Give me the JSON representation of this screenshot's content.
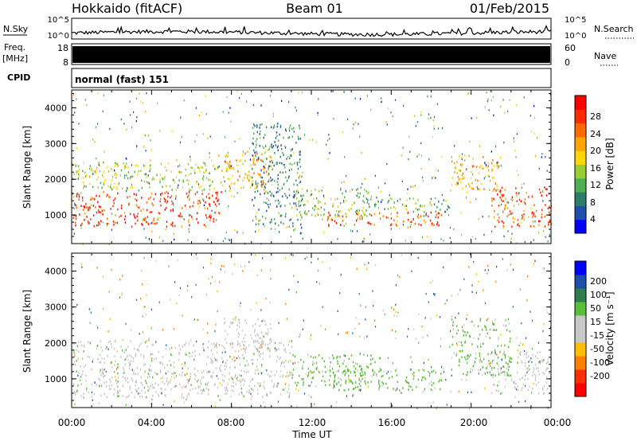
{
  "header": {
    "title": "Hokkaido (fitACF)",
    "beam": "Beam 01",
    "date": "01/Feb/2015"
  },
  "panel_labels": {
    "nsky": "N.Sky",
    "nsky_ticks": [
      "10^5",
      "10^0"
    ],
    "nsearch": "N.Search",
    "nsearch_ticks": [
      "10^5",
      "10^0"
    ],
    "freq_line1": "Freq.",
    "freq_line2": "[MHz]",
    "freq_ticks": [
      "18",
      "8"
    ],
    "nave": "Nave",
    "nave_ticks": [
      "60",
      "0"
    ],
    "cpid": "CPID",
    "cpid_text": "normal (fast) 151"
  },
  "axes": {
    "ylabel": "Slant Range [km]",
    "xlabel": "Time UT",
    "yticks": [
      "1000",
      "2000",
      "3000",
      "4000"
    ],
    "xticks": [
      "00:00",
      "04:00",
      "08:00",
      "12:00",
      "16:00",
      "20:00",
      "00:00"
    ]
  },
  "colorbars": {
    "power": {
      "label": "Power [dB]",
      "ticks": [
        "4",
        "8",
        "12",
        "16",
        "20",
        "24",
        "28"
      ],
      "colors": [
        "#0000ff",
        "#1f4faa",
        "#2e7d6a",
        "#4caf50",
        "#9acd32",
        "#ffd700",
        "#ffa500",
        "#ff6a00",
        "#ff2a00",
        "#ff0000"
      ]
    },
    "velocity": {
      "label": "Velocity [m s⁻¹]",
      "ticks": [
        "200",
        "100",
        "50",
        "15",
        "-15",
        "-50",
        "-100",
        "-200"
      ],
      "colors": [
        "#0000ff",
        "#1f4faa",
        "#2e7d4f",
        "#5bbf3a",
        "#c8c8c8",
        "#c8c8c8",
        "#ffbf00",
        "#ff8000",
        "#ff3000",
        "#ff0000"
      ]
    }
  },
  "chart_data": [
    {
      "type": "line",
      "title": "N.Sky / N.Search",
      "x_range_hours": [
        0,
        24
      ],
      "ylim_log10": [
        0,
        5
      ],
      "description_series": "noise level, roughly flat near 10^1"
    },
    {
      "type": "bar",
      "title": "Freq. / Nave",
      "freq_mhz": 10.5,
      "nave_constant": true
    },
    {
      "type": "heatmap",
      "title": "Power",
      "x_range_hours": [
        0,
        24
      ],
      "ylim_km": [
        200,
        4500
      ],
      "zlim_db": [
        0,
        31
      ],
      "regions": [
        {
          "t0": 0.0,
          "t1": 7.5,
          "r0": 700,
          "r1": 1700,
          "power": 26
        },
        {
          "t0": 0.0,
          "t1": 8.0,
          "r0": 1700,
          "r1": 2500,
          "power": 14
        },
        {
          "t0": 7.5,
          "t1": 10.0,
          "r0": 1800,
          "r1": 2800,
          "power": 20
        },
        {
          "t0": 9.0,
          "t1": 11.5,
          "r0": 500,
          "r1": 3600,
          "power": 8
        },
        {
          "t0": 11.0,
          "t1": 15.0,
          "r0": 1000,
          "r1": 1800,
          "power": 13
        },
        {
          "t0": 12.5,
          "t1": 18.5,
          "r0": 700,
          "r1": 1100,
          "power": 25
        },
        {
          "t0": 15.0,
          "t1": 19.0,
          "r0": 1100,
          "r1": 1500,
          "power": 12
        },
        {
          "t0": 19.0,
          "t1": 21.5,
          "r0": 1700,
          "r1": 2700,
          "power": 20
        },
        {
          "t0": 21.0,
          "t1": 24.0,
          "r0": 700,
          "r1": 1800,
          "power": 25
        }
      ]
    },
    {
      "type": "heatmap",
      "title": "Velocity",
      "x_range_hours": [
        0,
        24
      ],
      "ylim_km": [
        200,
        4500
      ],
      "zlim_ms": [
        -250,
        250
      ],
      "regions": [
        {
          "t0": 0.0,
          "t1": 11.0,
          "r0": 500,
          "r1": 2100,
          "velocity": 0
        },
        {
          "t0": 7.5,
          "t1": 10.0,
          "r0": 1800,
          "r1": 2700,
          "velocity": -20
        },
        {
          "t0": 11.0,
          "t1": 15.5,
          "r0": 800,
          "r1": 1700,
          "velocity": 30
        },
        {
          "t0": 13.0,
          "t1": 18.5,
          "r0": 700,
          "r1": 1300,
          "velocity": 30
        },
        {
          "t0": 19.0,
          "t1": 22.0,
          "r0": 1100,
          "r1": 2700,
          "velocity": 25
        },
        {
          "t0": 21.0,
          "t1": 24.0,
          "r0": 600,
          "r1": 1800,
          "velocity": 0
        }
      ]
    }
  ]
}
